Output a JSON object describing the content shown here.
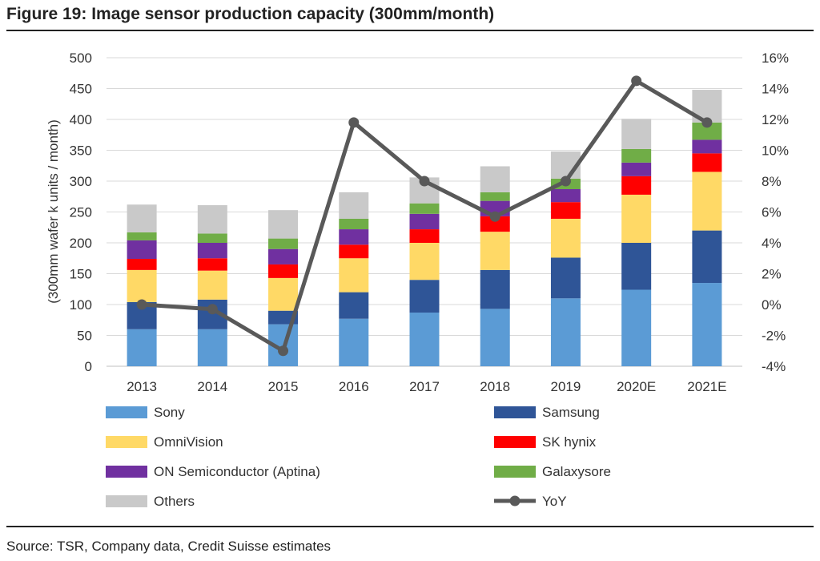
{
  "figure": {
    "title": "Figure 19: Image sensor production capacity (300mm/month)",
    "source": "Source: TSR, Company data, Credit Suisse estimates"
  },
  "chart_data": {
    "type": "bar",
    "stacked": true,
    "title": "Figure 19: Image sensor production capacity (300mm/month)",
    "ylabel": "(300mm wafer k  units / month)",
    "ylim": [
      0,
      500
    ],
    "yticks": [
      "0",
      "50",
      "100",
      "150",
      "200",
      "250",
      "300",
      "350",
      "400",
      "450",
      "500"
    ],
    "y2lim": [
      -4,
      16
    ],
    "y2ticks": [
      "-4%",
      "-2%",
      "0%",
      "2%",
      "4%",
      "6%",
      "8%",
      "10%",
      "12%",
      "14%",
      "16%"
    ],
    "categories": [
      "2013",
      "2014",
      "2015",
      "2016",
      "2017",
      "2018",
      "2019",
      "2020E",
      "2021E"
    ],
    "grid": true,
    "legend_position": "bottom",
    "series": [
      {
        "name": "Sony",
        "color": "#5b9bd5",
        "values": [
          60,
          60,
          68,
          77,
          87,
          93,
          110,
          124,
          135
        ]
      },
      {
        "name": "Samsung",
        "color": "#2f5597",
        "values": [
          44,
          48,
          22,
          43,
          53,
          63,
          66,
          76,
          85
        ]
      },
      {
        "name": "OmniVision",
        "color": "#ffd966",
        "values": [
          52,
          47,
          53,
          55,
          60,
          62,
          63,
          78,
          95
        ]
      },
      {
        "name": "SK hynix",
        "color": "#ff0000",
        "values": [
          18,
          20,
          22,
          22,
          22,
          25,
          27,
          30,
          30
        ]
      },
      {
        "name": "ON Semiconductor (Aptina)",
        "color": "#7030a0",
        "values": [
          30,
          25,
          25,
          25,
          25,
          25,
          21,
          22,
          22
        ]
      },
      {
        "name": "Galaxysore",
        "color": "#70ad47",
        "values": [
          13,
          15,
          17,
          17,
          17,
          14,
          17,
          22,
          28
        ]
      },
      {
        "name": "Others",
        "color": "#c9c9c9",
        "values": [
          45,
          46,
          46,
          43,
          42,
          42,
          44,
          49,
          53
        ]
      }
    ],
    "line_series": {
      "name": "YoY",
      "color": "#595959",
      "axis": "right",
      "unit": "%",
      "values": [
        0,
        -0.3,
        -3,
        11.8,
        8,
        5.7,
        8,
        14.5,
        11.8
      ]
    }
  }
}
